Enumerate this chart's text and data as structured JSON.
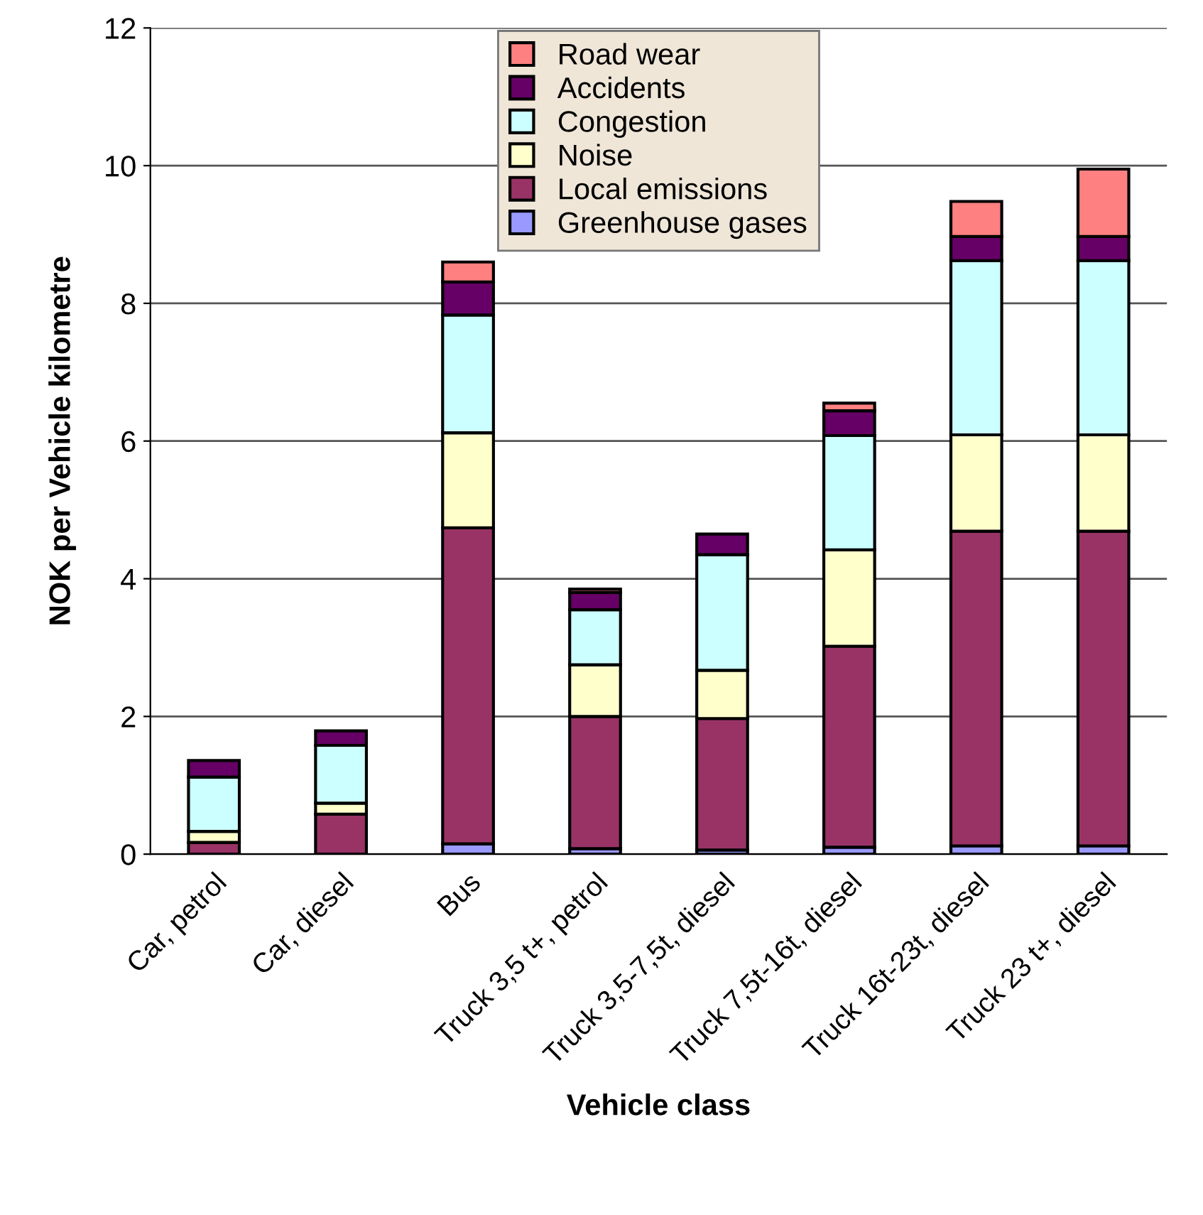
{
  "chart_data": {
    "type": "bar",
    "stacked": true,
    "xlabel": "Vehicle class",
    "ylabel": "NOK per Vehicle kilometre",
    "categories": [
      "Car, petrol",
      "Car, diesel",
      "Bus",
      "Truck 3,5 t+, petrol",
      "Truck 3,5-7,5t, diesel",
      "Truck 7,5t-16t, diesel",
      "Truck 16t-23t, diesel",
      "Truck 23 t+, diesel"
    ],
    "series": [
      {
        "name": "Greenhouse gases",
        "color": "#9999ff",
        "values": [
          null,
          null,
          0.15,
          0.08,
          0.06,
          0.1,
          0.12,
          0.12
        ]
      },
      {
        "name": "Local emissions",
        "color": "#993366",
        "values": [
          0.17,
          0.58,
          4.59,
          1.92,
          1.91,
          2.92,
          4.57,
          4.57
        ]
      },
      {
        "name": "Noise",
        "color": "#ffffcc",
        "values": [
          0.16,
          0.16,
          1.38,
          0.75,
          0.7,
          1.4,
          1.4,
          1.4
        ]
      },
      {
        "name": "Congestion",
        "color": "#ccffff",
        "values": [
          0.79,
          0.84,
          1.71,
          0.8,
          1.68,
          1.66,
          2.53,
          2.53
        ]
      },
      {
        "name": "Accidents",
        "color": "#660066",
        "values": [
          0.24,
          0.21,
          0.48,
          0.25,
          0.3,
          0.36,
          0.35,
          0.35
        ]
      },
      {
        "name": "Road wear",
        "color": "#ff8080",
        "values": [
          null,
          null,
          0.29,
          0.05,
          null,
          0.11,
          0.51,
          0.98
        ]
      }
    ],
    "ylim": [
      0,
      12
    ],
    "yticks": [
      0,
      2,
      4,
      6,
      8,
      10,
      12
    ],
    "grid": "y",
    "legend": "top"
  }
}
